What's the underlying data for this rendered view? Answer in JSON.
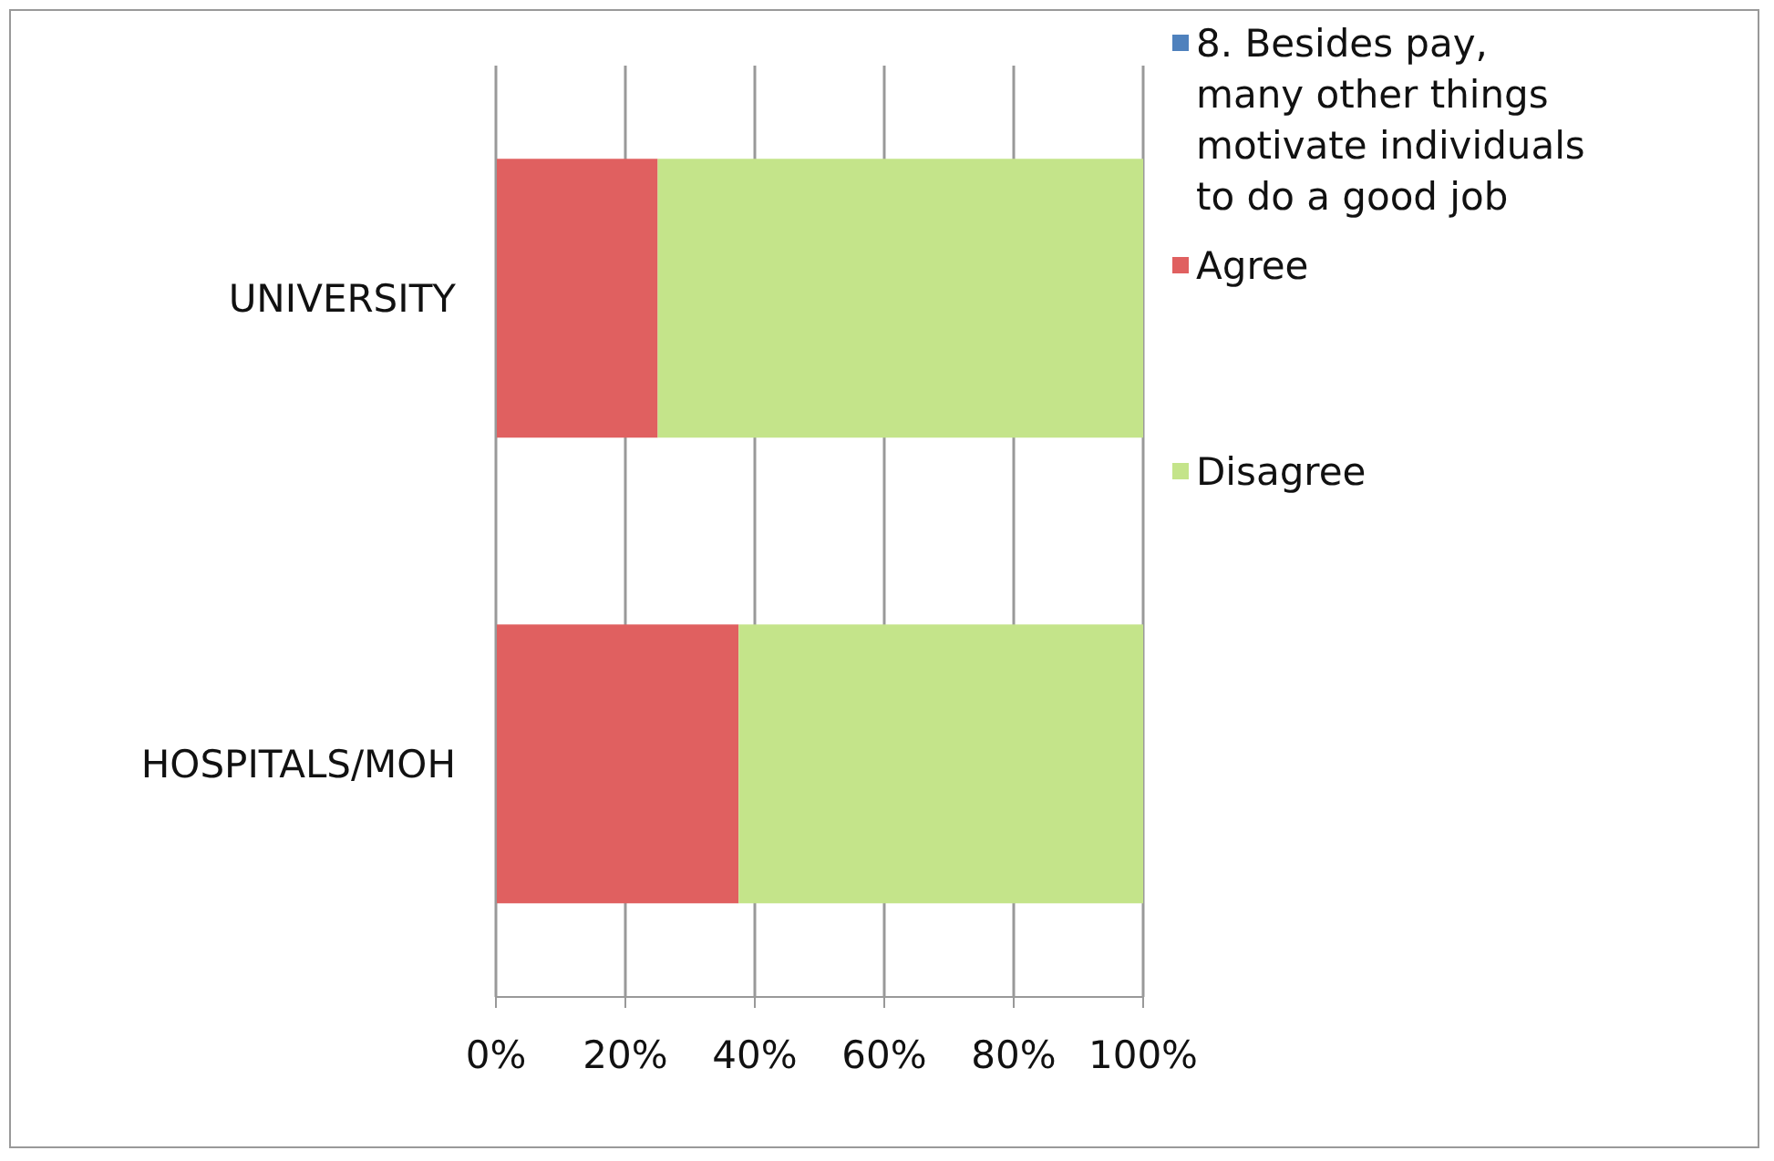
{
  "chart_data": {
    "type": "bar",
    "orientation": "horizontal",
    "stacked": true,
    "categories": [
      "UNIVERSITY",
      "HOSPITALS/MOH"
    ],
    "series": [
      {
        "name": "8. Besides pay, many other things motivate individuals to do a good job",
        "color": "#4f81bd",
        "values": [
          0,
          0
        ]
      },
      {
        "name": "Agree",
        "color": "#e06060",
        "values": [
          25,
          37.5
        ]
      },
      {
        "name": "Disagree",
        "color": "#c4e48a",
        "values": [
          75,
          62.5
        ]
      }
    ],
    "xlim": [
      0,
      100
    ],
    "xticks": [
      {
        "value": 0,
        "label": "0%"
      },
      {
        "value": 20,
        "label": "20%"
      },
      {
        "value": 40,
        "label": "40%"
      },
      {
        "value": 60,
        "label": "60%"
      },
      {
        "value": 80,
        "label": "80%"
      },
      {
        "value": 100,
        "label": "100%"
      }
    ],
    "grid": "x",
    "legend": "right"
  }
}
